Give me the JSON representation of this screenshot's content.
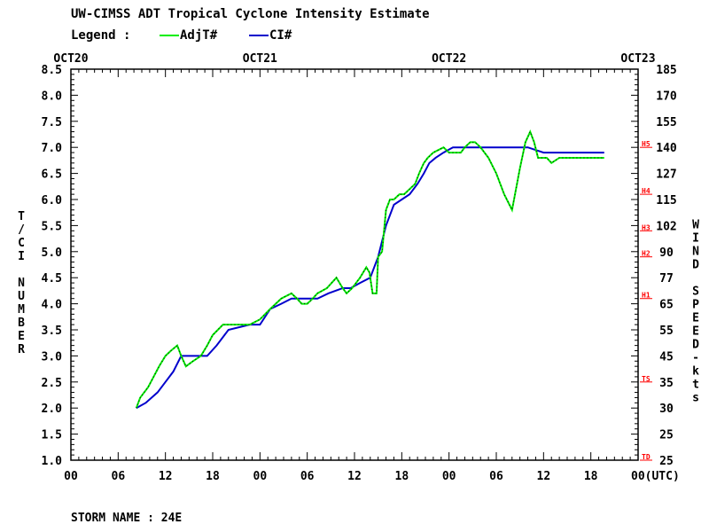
{
  "chart_data": {
    "type": "line",
    "title": "UW-CIMSS ADT Tropical Cyclone Intensity Estimate",
    "legend_label": "Legend :",
    "legend_position": "top-left",
    "footer": "STORM NAME : 24E",
    "ylabel_left": "T/CI NUMBER",
    "ylabel_right": "WIND SPEED-kts",
    "date_labels": [
      "OCT20",
      "OCT21",
      "OCT22",
      "OCT23"
    ],
    "x_tick_labels": [
      "00",
      "06",
      "12",
      "18",
      "00",
      "06",
      "12",
      "18",
      "00",
      "06",
      "12",
      "18",
      "00(UTC)"
    ],
    "xlim_hours": [
      0,
      72
    ],
    "ylim": [
      1.0,
      8.5
    ],
    "y_ticks": [
      "1.0",
      "1.5",
      "2.0",
      "2.5",
      "3.0",
      "3.5",
      "4.0",
      "4.5",
      "5.0",
      "5.5",
      "6.0",
      "6.5",
      "7.0",
      "7.5",
      "8.0",
      "8.5"
    ],
    "wind_ticks": [
      {
        "ci": 1.0,
        "label": "25"
      },
      {
        "ci": 1.5,
        "label": "25"
      },
      {
        "ci": 2.0,
        "label": "30"
      },
      {
        "ci": 2.5,
        "label": "35"
      },
      {
        "ci": 3.0,
        "label": "45"
      },
      {
        "ci": 3.5,
        "label": "55"
      },
      {
        "ci": 4.0,
        "label": "65"
      },
      {
        "ci": 4.5,
        "label": "77"
      },
      {
        "ci": 5.0,
        "label": "90"
      },
      {
        "ci": 5.5,
        "label": "102"
      },
      {
        "ci": 6.0,
        "label": "115"
      },
      {
        "ci": 6.5,
        "label": "127"
      },
      {
        "ci": 7.0,
        "label": "140"
      },
      {
        "ci": 7.5,
        "label": "155"
      },
      {
        "ci": 8.0,
        "label": "170"
      },
      {
        "ci": 8.5,
        "label": "185"
      }
    ],
    "categories_right": [
      {
        "label": "TD",
        "ci": 1.0
      },
      {
        "label": "TS",
        "ci": 2.5
      },
      {
        "label": "H1",
        "ci": 4.1
      },
      {
        "label": "H2",
        "ci": 4.9
      },
      {
        "label": "H3",
        "ci": 5.4
      },
      {
        "label": "H4",
        "ci": 6.1
      },
      {
        "label": "H5",
        "ci": 7.0
      }
    ],
    "grid": false,
    "series": [
      {
        "name": "AdjT#",
        "color": "#00ee00",
        "x": [
          8.3,
          8.8,
          9.8,
          10.5,
          11.2,
          12.0,
          12.7,
          13.5,
          14.0,
          14.6,
          15.5,
          16.5,
          17.3,
          18.0,
          19.3,
          20.0,
          21.3,
          22.7,
          24.0,
          25.3,
          26.7,
          28.0,
          28.7,
          29.3,
          30.0,
          30.7,
          31.3,
          32.5,
          33.7,
          34.5,
          35.0,
          35.7,
          36.7,
          37.5,
          37.9,
          38.3,
          38.8,
          39.0,
          39.5,
          40.0,
          40.5,
          41.0,
          41.7,
          42.0,
          42.3,
          43.0,
          43.7,
          44.2,
          44.8,
          45.3,
          46.0,
          47.3,
          48.0,
          48.8,
          49.5,
          50.0,
          50.7,
          51.3,
          52.0,
          53.0,
          54.0,
          55.0,
          56.0,
          57.0,
          57.7,
          58.3,
          58.8,
          59.3,
          60.0,
          60.4,
          61.0,
          62.0,
          63.0,
          64.0,
          64.5,
          65.3,
          65.8,
          66.5,
          67.0,
          67.7
        ],
        "values": [
          2.0,
          2.2,
          2.4,
          2.6,
          2.8,
          3.0,
          3.1,
          3.2,
          3.0,
          2.8,
          2.9,
          3.0,
          3.2,
          3.4,
          3.6,
          3.6,
          3.6,
          3.6,
          3.7,
          3.9,
          4.1,
          4.2,
          4.1,
          4.0,
          4.0,
          4.1,
          4.2,
          4.3,
          4.5,
          4.3,
          4.2,
          4.3,
          4.5,
          4.7,
          4.6,
          4.2,
          4.2,
          4.9,
          5.0,
          5.8,
          6.0,
          6.0,
          6.1,
          6.1,
          6.1,
          6.2,
          6.3,
          6.5,
          6.7,
          6.8,
          6.9,
          7.0,
          6.9,
          6.9,
          6.9,
          7.0,
          7.1,
          7.1,
          7.0,
          6.8,
          6.5,
          6.1,
          5.8,
          6.6,
          7.1,
          7.3,
          7.1,
          6.8,
          6.8,
          6.8,
          6.7,
          6.8,
          6.8,
          6.8,
          6.8,
          6.8,
          6.8,
          6.8,
          6.8,
          6.8
        ]
      },
      {
        "name": "CI#",
        "color": "#0000cc",
        "x": [
          8.3,
          9.5,
          11.0,
          12.0,
          13.0,
          14.0,
          17.3,
          18.5,
          20.0,
          22.7,
          24.0,
          25.3,
          26.7,
          28.0,
          29.0,
          31.3,
          32.7,
          34.5,
          35.5,
          36.7,
          38.0,
          39.0,
          40.0,
          41.0,
          42.0,
          43.0,
          44.0,
          44.8,
          45.5,
          46.3,
          47.3,
          48.5,
          50.0,
          52.0,
          54.0,
          56.0,
          58.0,
          60.0,
          62.0,
          67.7
        ],
        "values": [
          2.0,
          2.1,
          2.3,
          2.5,
          2.7,
          3.0,
          3.0,
          3.2,
          3.5,
          3.6,
          3.6,
          3.9,
          4.0,
          4.1,
          4.1,
          4.1,
          4.2,
          4.3,
          4.3,
          4.4,
          4.5,
          4.9,
          5.5,
          5.9,
          6.0,
          6.1,
          6.3,
          6.5,
          6.7,
          6.8,
          6.9,
          7.0,
          7.0,
          7.0,
          7.0,
          7.0,
          7.0,
          6.9,
          6.9,
          6.9
        ]
      }
    ]
  }
}
